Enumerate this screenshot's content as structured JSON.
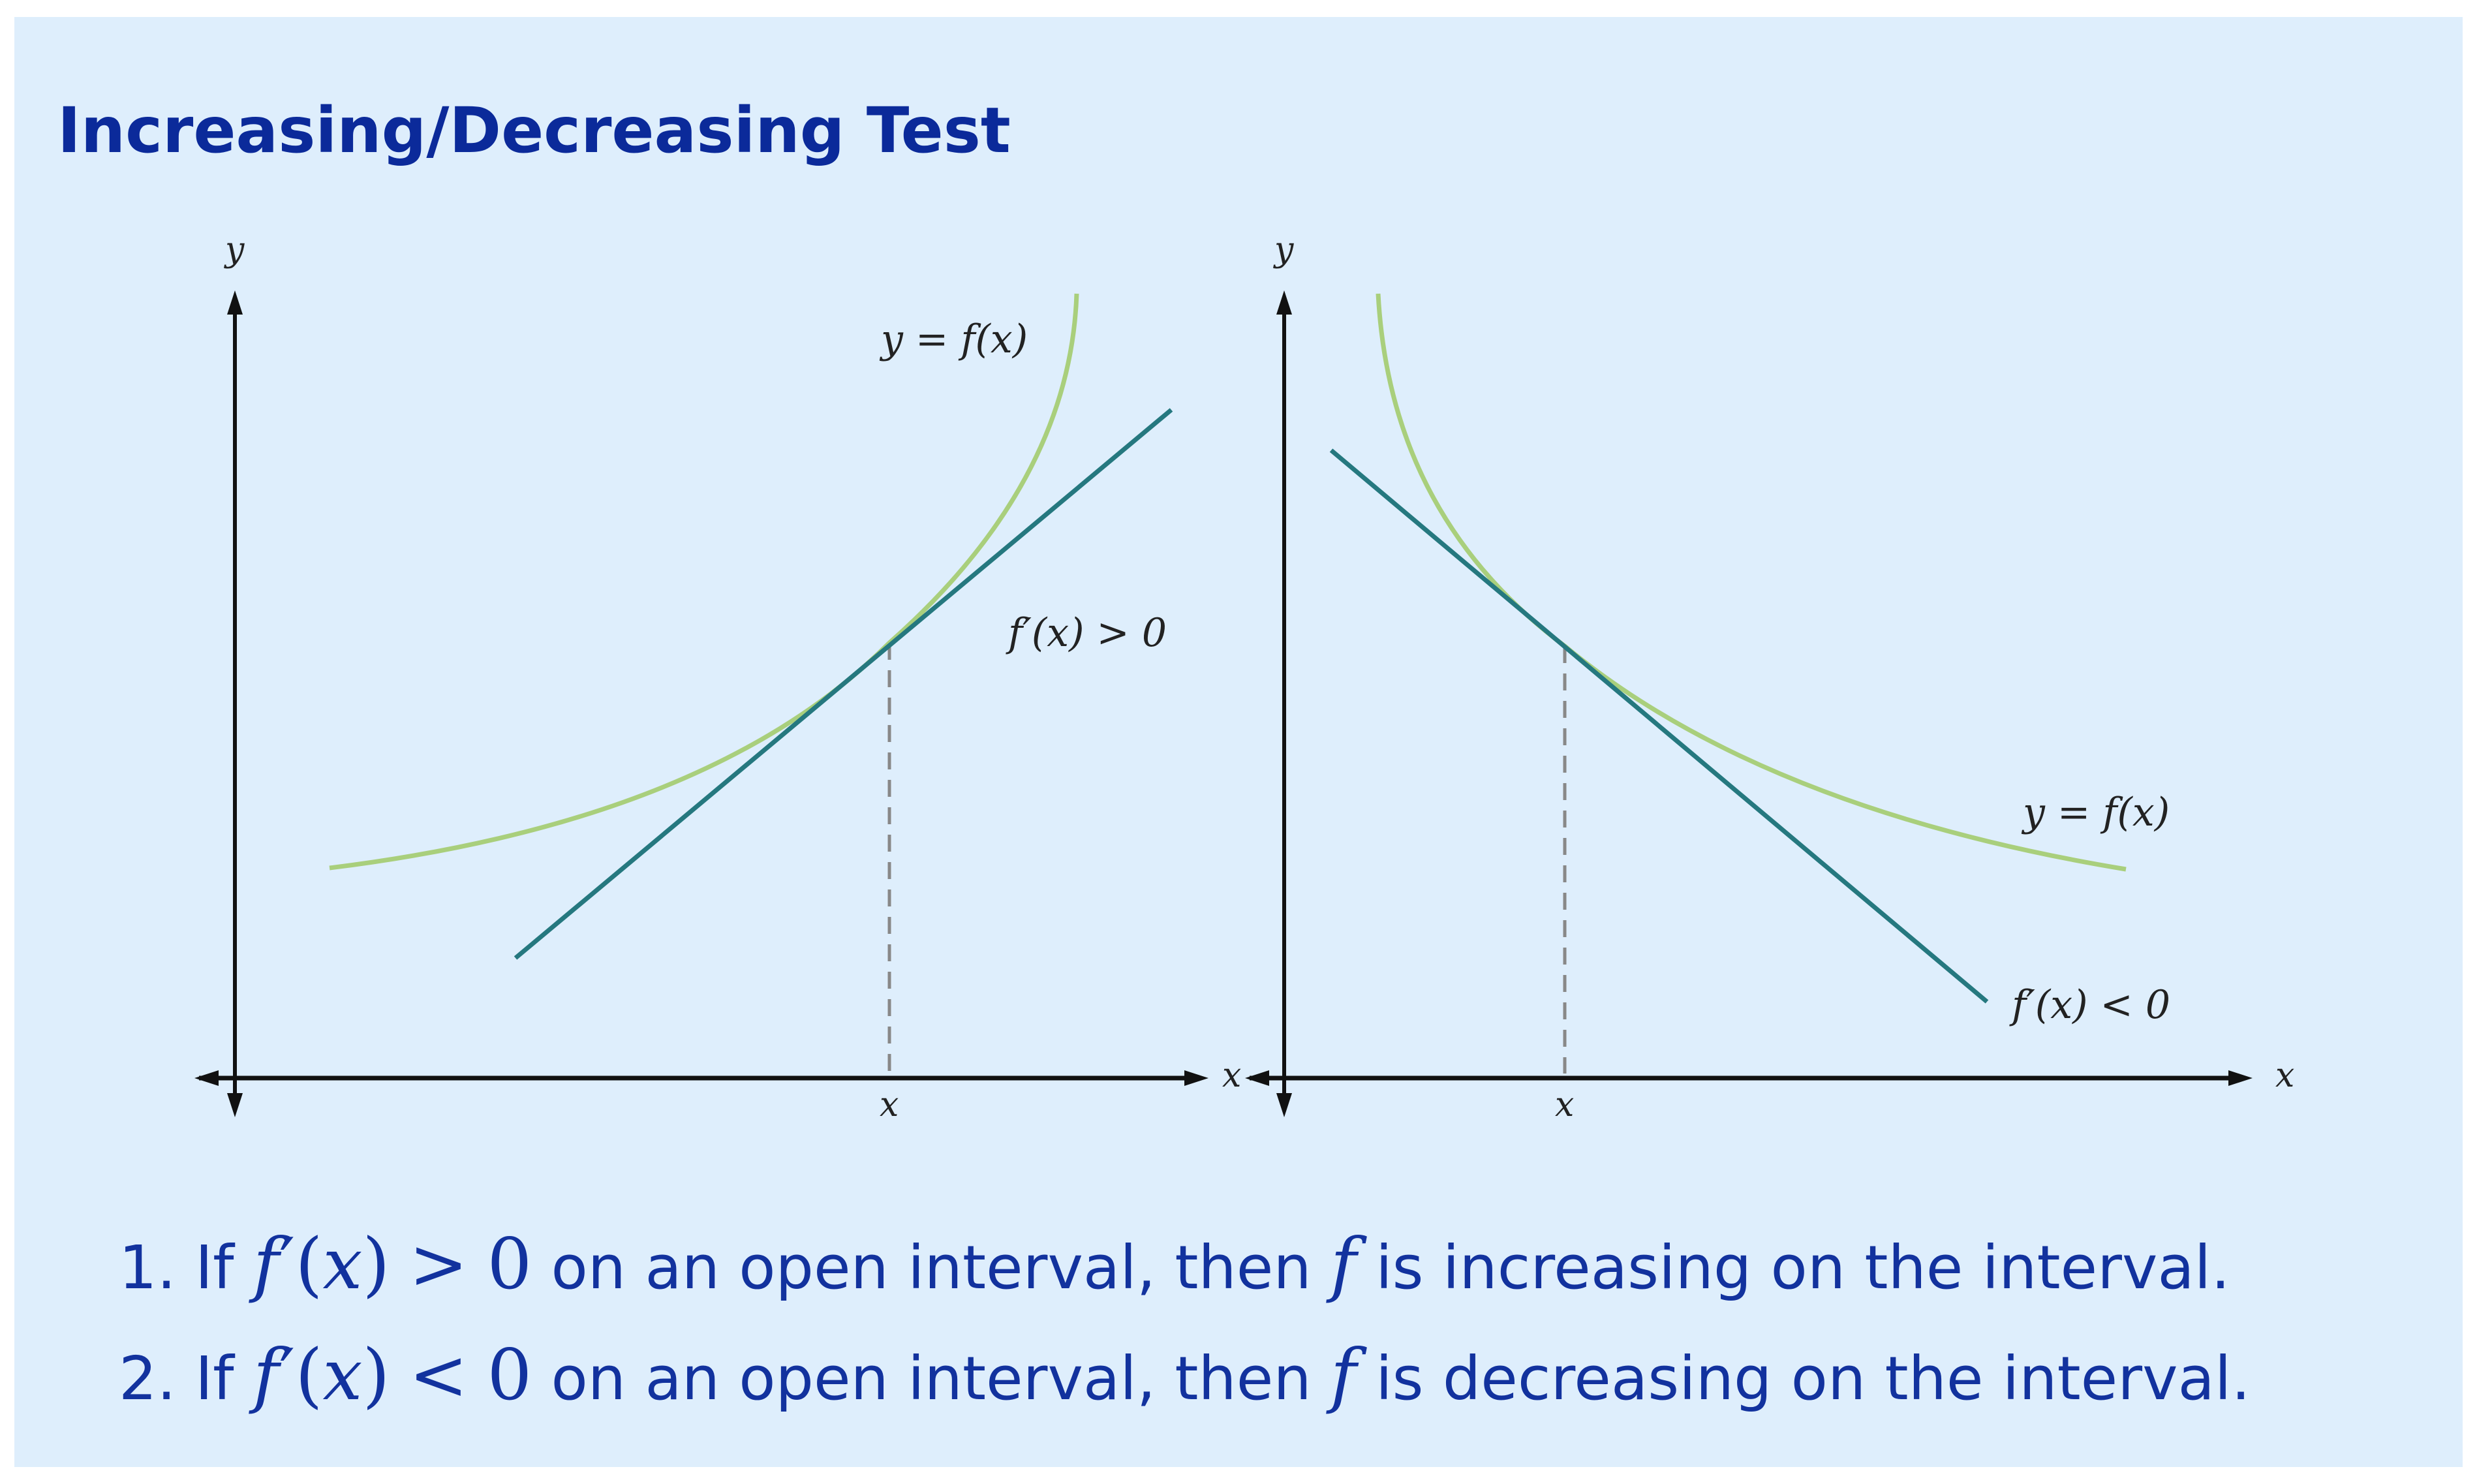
{
  "title": "Increasing/Decreasing Test",
  "colors": {
    "background": "#deeefc",
    "title": "#0b2a9a",
    "text": "#12329e",
    "curve": "#a9cf7c",
    "tangent": "#25787f",
    "axis": "#111111",
    "dashed": "#888888"
  },
  "left_graph": {
    "y_axis_label": "y",
    "x_axis_label": "x",
    "x_tick_label": "x",
    "curve_label": "y = f(x)",
    "derivative_label": "f′(x) > 0"
  },
  "right_graph": {
    "y_axis_label": "y",
    "x_axis_label": "x",
    "x_tick_label": "x",
    "curve_label": "y = f(x)",
    "derivative_label": "f′(x) < 0"
  },
  "rules": [
    {
      "number": "1.",
      "prefix": "If",
      "func": "f",
      "prime": "′",
      "paren_open": "(",
      "var": "x",
      "paren_close": ")",
      "relation": ">",
      "value": "0",
      "middle": "on an open interval, then",
      "subject": "f",
      "suffix": "is increasing on the interval."
    },
    {
      "number": "2.",
      "prefix": "If",
      "func": "f",
      "prime": "′",
      "paren_open": "(",
      "var": "x",
      "paren_close": ")",
      "relation": "<",
      "value": "0",
      "middle": "on an open interval, then",
      "subject": "f",
      "suffix": "is decreasing on the interval."
    }
  ]
}
